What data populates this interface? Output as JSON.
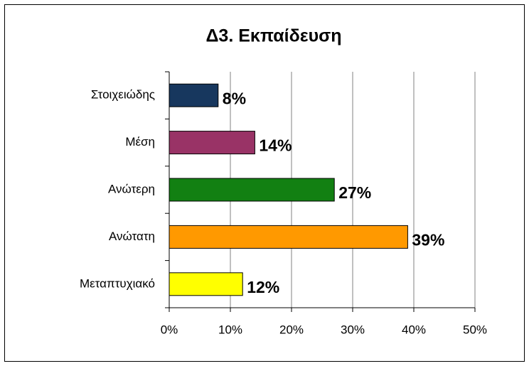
{
  "chart_data": {
    "type": "bar",
    "orientation": "horizontal",
    "title": "Δ3. Εκπαίδευση",
    "categories": [
      "Στοιχειώδης",
      "Μέση",
      "Ανώτερη",
      "Ανώτατη",
      "Μεταπτυχιακό"
    ],
    "values": [
      8,
      14,
      27,
      39,
      12
    ],
    "value_labels": [
      "8%",
      "14%",
      "27%",
      "39%",
      "12%"
    ],
    "colors": [
      "#17375e",
      "#993366",
      "#128012",
      "#ff9900",
      "#ffff00"
    ],
    "xlim": [
      0,
      50
    ],
    "xticks": [
      {
        "value": 0,
        "label": "0%"
      },
      {
        "value": 10,
        "label": "10%"
      },
      {
        "value": 20,
        "label": "20%"
      },
      {
        "value": 30,
        "label": "30%"
      },
      {
        "value": 40,
        "label": "40%"
      },
      {
        "value": 50,
        "label": "50%"
      }
    ],
    "grid": true
  }
}
